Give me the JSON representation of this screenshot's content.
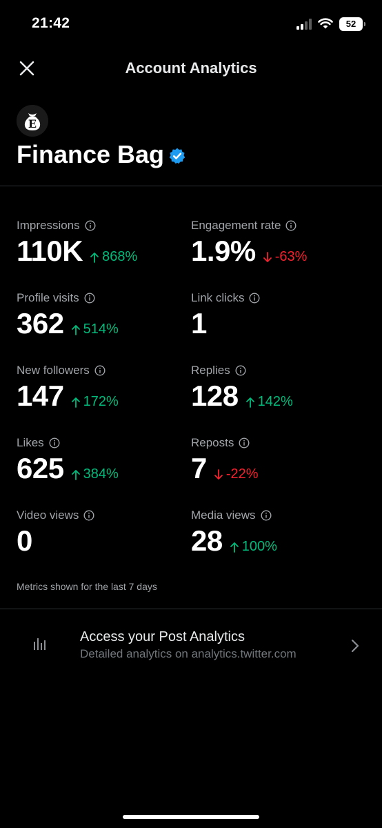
{
  "status_bar": {
    "time": "21:42",
    "battery": "52"
  },
  "header": {
    "title": "Account Analytics"
  },
  "profile": {
    "name": "Finance Bag",
    "avatar_letter": "E",
    "verified": true
  },
  "metrics": [
    {
      "label": "Impressions",
      "value": "110K",
      "change": "868%",
      "trend": "up"
    },
    {
      "label": "Engagement rate",
      "value": "1.9%",
      "change": "-63%",
      "trend": "down"
    },
    {
      "label": "Profile visits",
      "value": "362",
      "change": "514%",
      "trend": "up"
    },
    {
      "label": "Link clicks",
      "value": "1",
      "change": "",
      "trend": "none"
    },
    {
      "label": "New followers",
      "value": "147",
      "change": "172%",
      "trend": "up"
    },
    {
      "label": "Replies",
      "value": "128",
      "change": "142%",
      "trend": "up"
    },
    {
      "label": "Likes",
      "value": "625",
      "change": "384%",
      "trend": "up"
    },
    {
      "label": "Reposts",
      "value": "7",
      "change": "-22%",
      "trend": "down"
    },
    {
      "label": "Video views",
      "value": "0",
      "change": "",
      "trend": "none"
    },
    {
      "label": "Media views",
      "value": "28",
      "change": "100%",
      "trend": "up"
    }
  ],
  "footnote": "Metrics shown for the last 7 days",
  "post_analytics": {
    "title": "Access your Post Analytics",
    "subtitle": "Detailed analytics on analytics.twitter.com"
  },
  "colors": {
    "up": "#00ba7c",
    "down": "#f4212e",
    "verified": "#1d9bf0",
    "background": "#000000"
  },
  "icons": {
    "close": "close-icon",
    "info": "info-icon",
    "bars": "bar-chart-icon",
    "chevron": "chevron-right-icon",
    "verified": "verified-badge-icon"
  }
}
